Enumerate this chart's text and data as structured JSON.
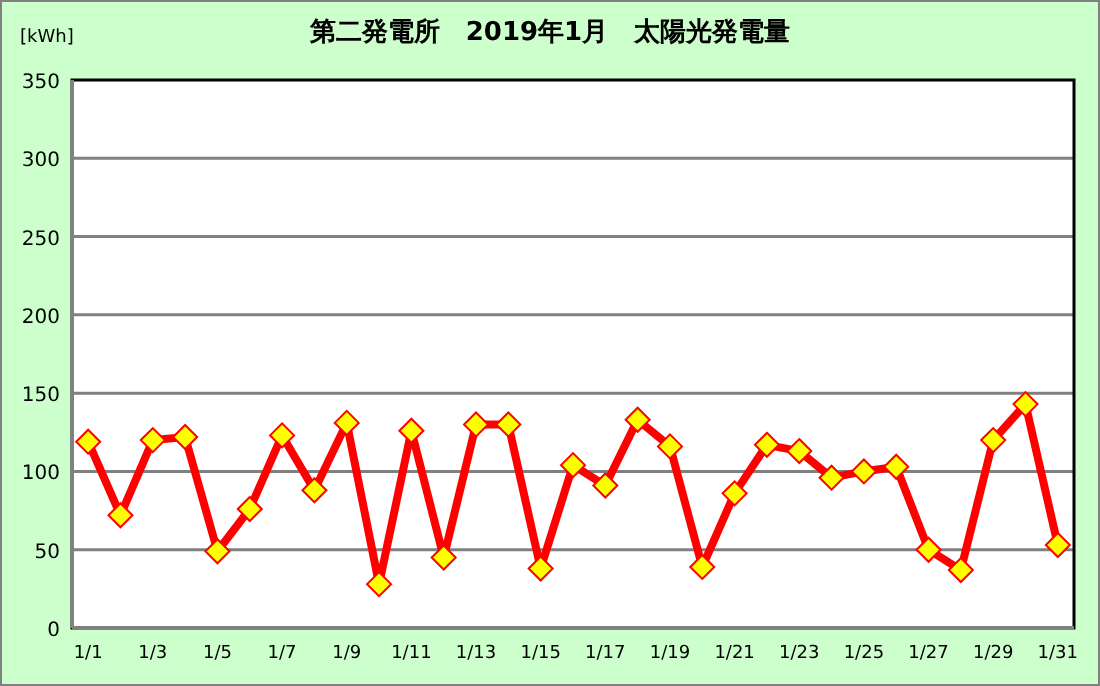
{
  "chart_data": {
    "type": "line",
    "title": "第二発電所　2019年1月　太陽光発電量",
    "ylabel": "[kWh]",
    "categories": [
      "1/1",
      null,
      "1/3",
      null,
      "1/5",
      null,
      "1/7",
      null,
      "1/9",
      null,
      "1/11",
      null,
      "1/13",
      null,
      "1/15",
      null,
      "1/17",
      null,
      "1/19",
      null,
      "1/21",
      null,
      "1/23",
      null,
      "1/25",
      null,
      "1/27",
      null,
      "1/29",
      null,
      "1/31"
    ],
    "series": [
      {
        "color": "#ff0000",
        "values": [
          119,
          72,
          120,
          122,
          49,
          76,
          123,
          88,
          131,
          28,
          126,
          45,
          130,
          130,
          38,
          104,
          91,
          133,
          116,
          39,
          86,
          117,
          113,
          96,
          100,
          103,
          50,
          37,
          120,
          143,
          53
        ]
      }
    ],
    "ylim": [
      0,
      350
    ],
    "yticks": [
      0,
      50,
      100,
      150,
      200,
      250,
      300,
      350
    ],
    "grid": "y",
    "marker": "diamond",
    "line_style": "solid"
  }
}
